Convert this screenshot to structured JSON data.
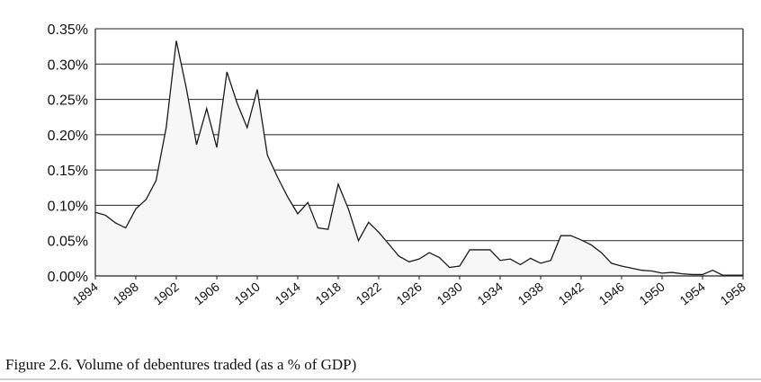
{
  "caption": "Figure 2.6.  Volume of debentures traded (as a % of GDP)",
  "chart_data": {
    "type": "area",
    "title": "",
    "xlabel": "",
    "ylabel": "",
    "ylim": [
      0,
      0.35
    ],
    "y_ticks": [
      "0.00%",
      "0.05%",
      "0.10%",
      "0.15%",
      "0.20%",
      "0.25%",
      "0.30%",
      "0.35%"
    ],
    "x_ticks": [
      "1894",
      "1898",
      "1902",
      "1906",
      "1910",
      "1914",
      "1918",
      "1922",
      "1926",
      "1930",
      "1934",
      "1938",
      "1942",
      "1946",
      "1950",
      "1954",
      "1958"
    ],
    "grid": "horizontal",
    "series": [
      {
        "x": [
          1894,
          1895,
          1896,
          1897,
          1898,
          1899,
          1900,
          1901,
          1902,
          1903,
          1904,
          1905,
          1906,
          1907,
          1908,
          1909,
          1910,
          1911,
          1912,
          1913,
          1914,
          1915,
          1916,
          1917,
          1918,
          1919,
          1920,
          1921,
          1922,
          1923,
          1924,
          1925,
          1926,
          1927,
          1928,
          1929,
          1930,
          1931,
          1932,
          1933,
          1934,
          1935,
          1936,
          1937,
          1938,
          1939,
          1940,
          1941,
          1942,
          1943,
          1944,
          1945,
          1946,
          1947,
          1948,
          1949,
          1950,
          1951,
          1952,
          1953,
          1954,
          1955,
          1956,
          1957,
          1958
        ],
        "values": [
          0.09,
          0.086,
          0.075,
          0.068,
          0.095,
          0.108,
          0.135,
          0.21,
          0.333,
          0.265,
          0.186,
          0.237,
          0.182,
          0.289,
          0.245,
          0.21,
          0.264,
          0.171,
          0.14,
          0.112,
          0.088,
          0.104,
          0.068,
          0.066,
          0.13,
          0.095,
          0.05,
          0.076,
          0.062,
          0.045,
          0.028,
          0.02,
          0.024,
          0.033,
          0.026,
          0.012,
          0.014,
          0.037,
          0.037,
          0.037,
          0.022,
          0.024,
          0.016,
          0.025,
          0.018,
          0.022,
          0.057,
          0.057,
          0.051,
          0.044,
          0.033,
          0.018,
          0.014,
          0.011,
          0.008,
          0.007,
          0.004,
          0.005,
          0.003,
          0.002,
          0.002,
          0.008,
          0.001,
          0.001,
          0.001
        ]
      }
    ]
  }
}
